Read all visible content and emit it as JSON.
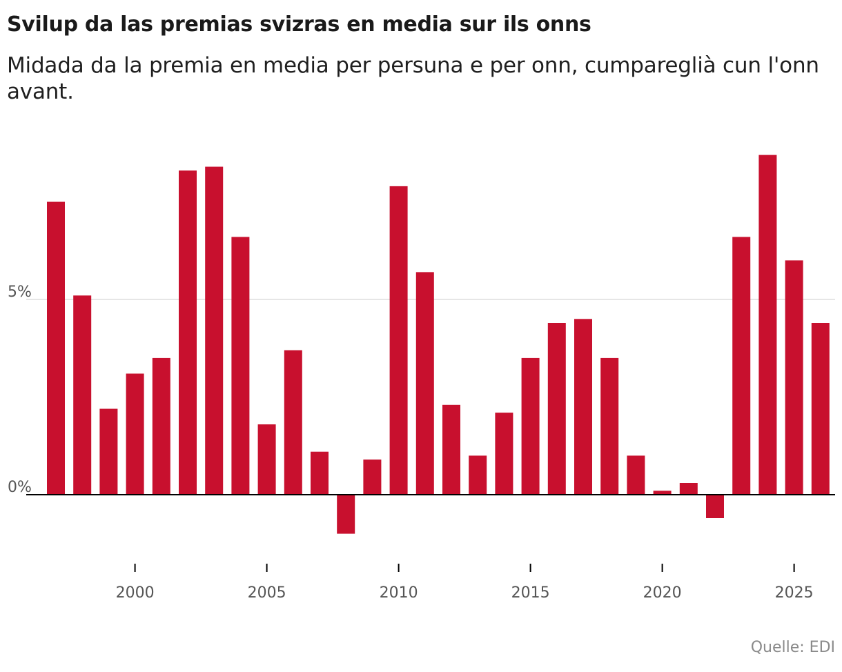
{
  "header": {
    "title": "Svilup da las premias svizras en media sur ils onns",
    "subtitle": "Midada da la premia en media per persuna e per onn, cumpareglià cun l'onn avant."
  },
  "footer": {
    "source": "Quelle: EDI"
  },
  "colors": {
    "bar": "#c8102e",
    "gridline": "#dddddd",
    "baseline": "#000000",
    "tick_label": "#555555"
  },
  "chart_data": {
    "type": "bar",
    "title": "Svilup da las premias svizras en media sur ils onns",
    "subtitle": "Midada da la premia en media per persuna e per onn, cumpareglià cun l'onn avant.",
    "xlabel": "",
    "ylabel": "",
    "categories": [
      1997,
      1998,
      1999,
      2000,
      2001,
      2002,
      2003,
      2004,
      2005,
      2006,
      2007,
      2008,
      2009,
      2010,
      2011,
      2012,
      2013,
      2014,
      2015,
      2016,
      2017,
      2018,
      2019,
      2020,
      2021,
      2022,
      2023,
      2024,
      2025,
      2026
    ],
    "values": [
      7.5,
      5.1,
      2.2,
      3.1,
      3.5,
      8.3,
      8.4,
      6.6,
      1.8,
      3.7,
      1.1,
      -1.0,
      0.9,
      7.9,
      5.7,
      2.3,
      1.0,
      2.1,
      3.5,
      4.4,
      4.5,
      3.5,
      1.0,
      0.1,
      0.3,
      -0.6,
      6.6,
      8.7,
      6.0,
      4.4
    ],
    "x_tick_labels": [
      "2000",
      "2005",
      "2010",
      "2015",
      "2020",
      "2025"
    ],
    "y_tick_labels": [
      "0%",
      "5%"
    ],
    "y_ticks": [
      0,
      5
    ],
    "ylim": [
      -1.7,
      9.5
    ],
    "grid": true,
    "legend": "none"
  }
}
